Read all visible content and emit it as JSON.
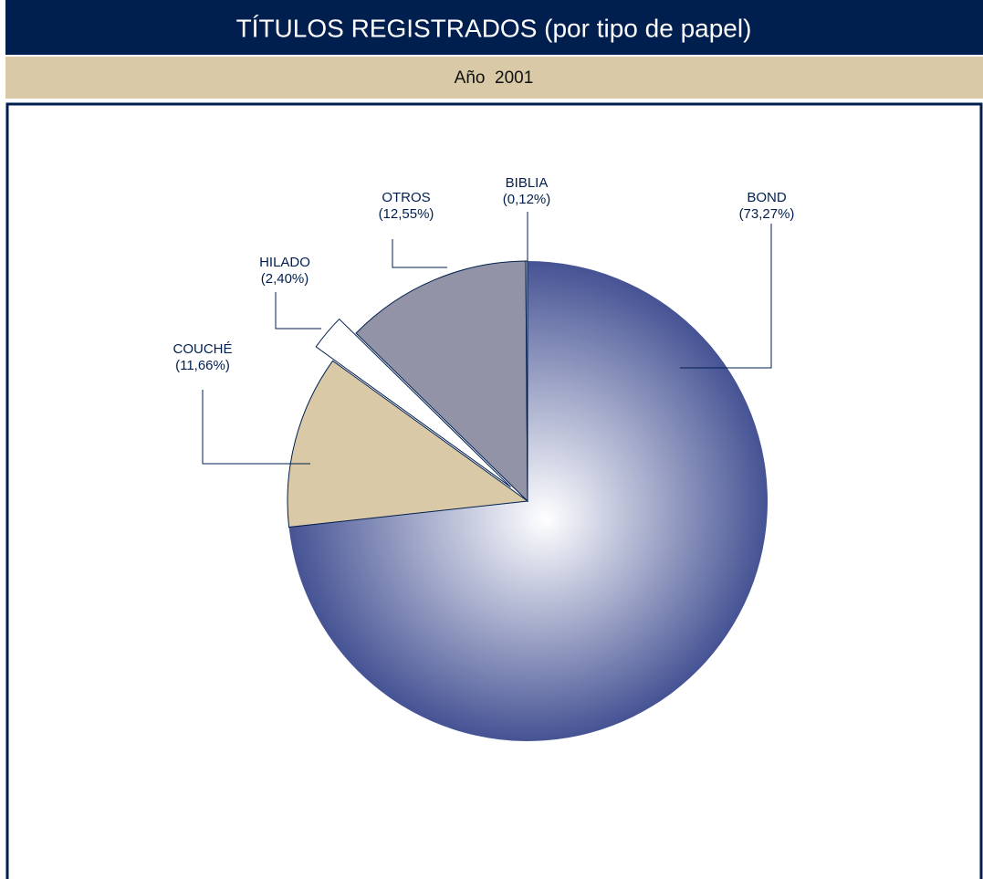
{
  "chart_data": {
    "type": "pie",
    "title": "TÍTULOS REGISTRADOS (por tipo de papel)",
    "subtitle": "Año  2001",
    "categories": [
      "BOND",
      "COUCHÉ",
      "HILADO",
      "OTROS",
      "BIBLIA"
    ],
    "values": [
      73.27,
      11.66,
      2.4,
      12.55,
      0.12
    ],
    "value_labels": [
      "(73,27%)",
      "(11,66%)",
      "(2,40%)",
      "(12,55%)",
      "(0,12%)"
    ],
    "colors": [
      "#465394",
      "#d9c9a6",
      "#ffffff",
      "#9393a8",
      "#c8c8c8"
    ]
  }
}
